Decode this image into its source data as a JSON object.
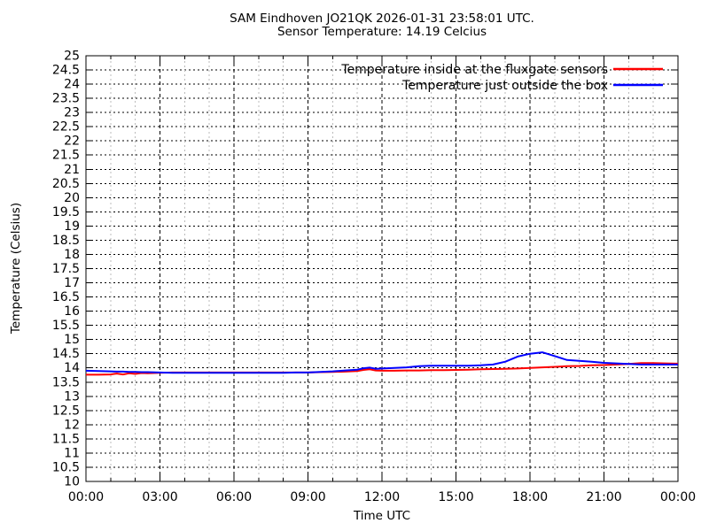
{
  "chart_data": {
    "type": "line",
    "title": "SAM Eindhoven JO21QK 2026-01-31 23:58:01 UTC.",
    "subtitle": "Sensor Temperature: 14.19 Celcius",
    "xlabel": "Time UTC",
    "ylabel": "Temperature (Celsius)",
    "xlim_hours": [
      0,
      24
    ],
    "ylim": [
      10,
      25
    ],
    "y_tick_step": 0.5,
    "x_major_tick_hours": 3,
    "x_minor_tick_hours": 1,
    "x_tick_labels": [
      "00:00",
      "03:00",
      "06:00",
      "09:00",
      "12:00",
      "15:00",
      "18:00",
      "21:00",
      "00:00"
    ],
    "grid": {
      "on": true,
      "horizontal_color": "#000000",
      "major_vertical_color": "#000000",
      "minor_vertical_color": "#bbbbbb",
      "style": "dashed"
    },
    "legend_position": "top-right-inside",
    "x_hours": [
      0,
      0.5,
      1,
      1.25,
      1.5,
      1.75,
      2,
      2.25,
      2.5,
      3,
      3.5,
      4,
      4.5,
      5,
      5.5,
      6,
      6.5,
      7,
      7.5,
      8,
      8.5,
      9,
      9.5,
      10,
      10.5,
      11,
      11.25,
      11.5,
      11.75,
      12,
      12.5,
      13,
      13.5,
      14,
      14.5,
      15,
      15.5,
      16,
      16.5,
      17,
      17.5,
      18,
      18.5,
      19,
      19.5,
      20,
      20.5,
      21,
      21.5,
      22,
      22.5,
      23,
      23.5,
      24
    ],
    "series": [
      {
        "name": "Temperature inside at the fluxgate sensors",
        "color": "#ff0000",
        "values": [
          13.76,
          13.76,
          13.77,
          13.8,
          13.77,
          13.81,
          13.79,
          13.82,
          13.81,
          13.83,
          13.84,
          13.84,
          13.84,
          13.84,
          13.84,
          13.84,
          13.84,
          13.84,
          13.84,
          13.84,
          13.84,
          13.84,
          13.85,
          13.86,
          13.87,
          13.89,
          13.93,
          13.95,
          13.91,
          13.9,
          13.9,
          13.91,
          13.91,
          13.92,
          13.92,
          13.93,
          13.94,
          13.95,
          13.96,
          13.97,
          13.98,
          14.0,
          14.02,
          14.04,
          14.06,
          14.07,
          14.09,
          14.1,
          14.12,
          14.14,
          14.17,
          14.17,
          14.16,
          14.15
        ]
      },
      {
        "name": "Temperature just outside the box",
        "color": "#0000ff",
        "values": [
          13.9,
          13.89,
          13.88,
          13.87,
          13.87,
          13.86,
          13.86,
          13.85,
          13.85,
          13.84,
          13.83,
          13.83,
          13.83,
          13.83,
          13.83,
          13.83,
          13.83,
          13.83,
          13.83,
          13.83,
          13.84,
          13.84,
          13.86,
          13.88,
          13.91,
          13.94,
          13.99,
          14.01,
          13.97,
          13.98,
          14.0,
          14.02,
          14.06,
          14.08,
          14.08,
          14.08,
          14.08,
          14.09,
          14.12,
          14.22,
          14.4,
          14.5,
          14.55,
          14.42,
          14.28,
          14.25,
          14.22,
          14.18,
          14.16,
          14.14,
          14.12,
          14.12,
          14.12,
          14.12
        ]
      }
    ]
  }
}
